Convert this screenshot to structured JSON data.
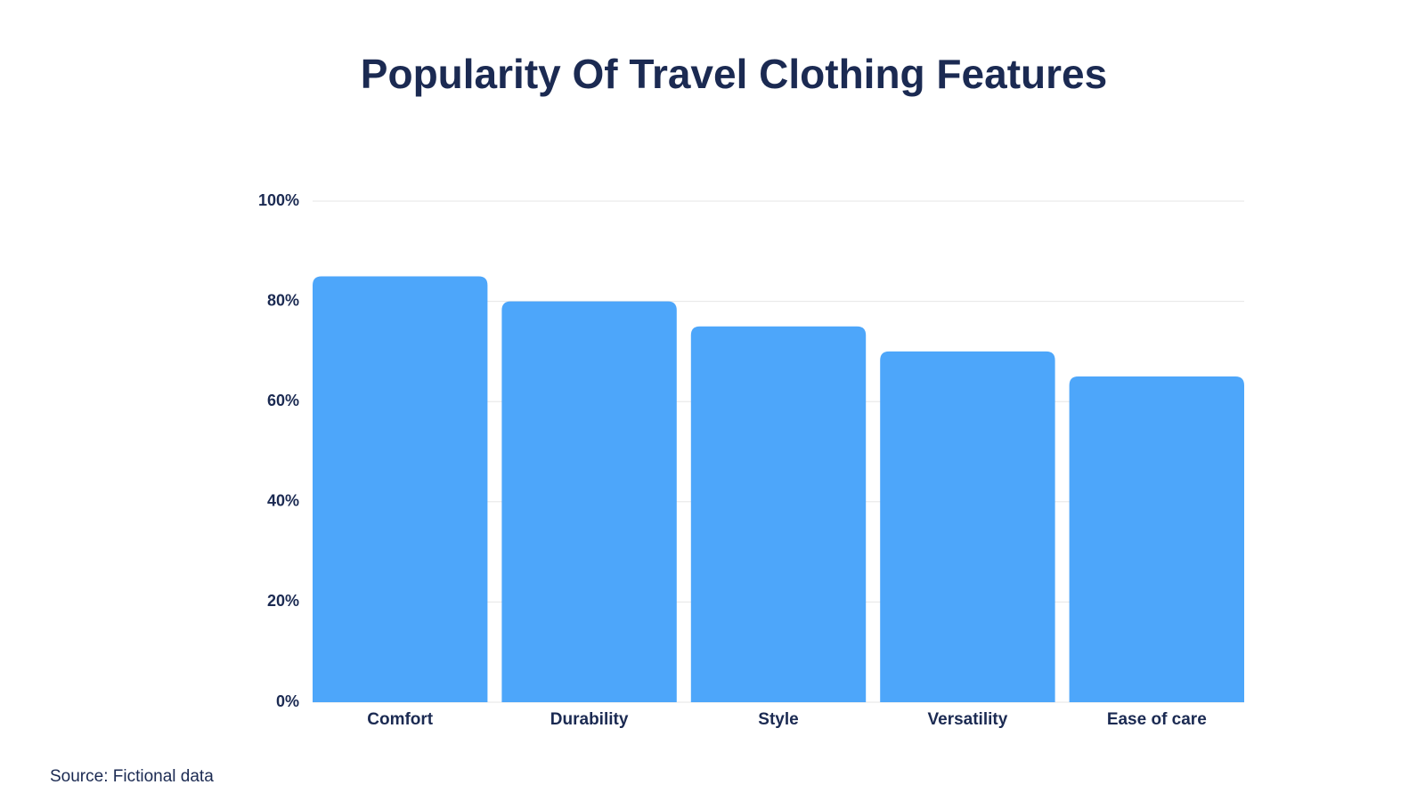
{
  "chart_data": {
    "type": "bar",
    "title": "Popularity Of Travel Clothing Features",
    "categories": [
      "Comfort",
      "Durability",
      "Style",
      "Versatility",
      "Ease of care"
    ],
    "values": [
      85,
      80,
      75,
      70,
      65
    ],
    "color": "#4da6fa",
    "ylim": [
      0,
      100
    ],
    "yticks": [
      {
        "value": 0,
        "label": "0%"
      },
      {
        "value": 20,
        "label": "20%"
      },
      {
        "value": 40,
        "label": "40%"
      },
      {
        "value": 60,
        "label": "60%"
      },
      {
        "value": 80,
        "label": "80%"
      },
      {
        "value": 100,
        "label": "100%"
      }
    ],
    "grid": true,
    "source": "Source: Fictional data"
  }
}
